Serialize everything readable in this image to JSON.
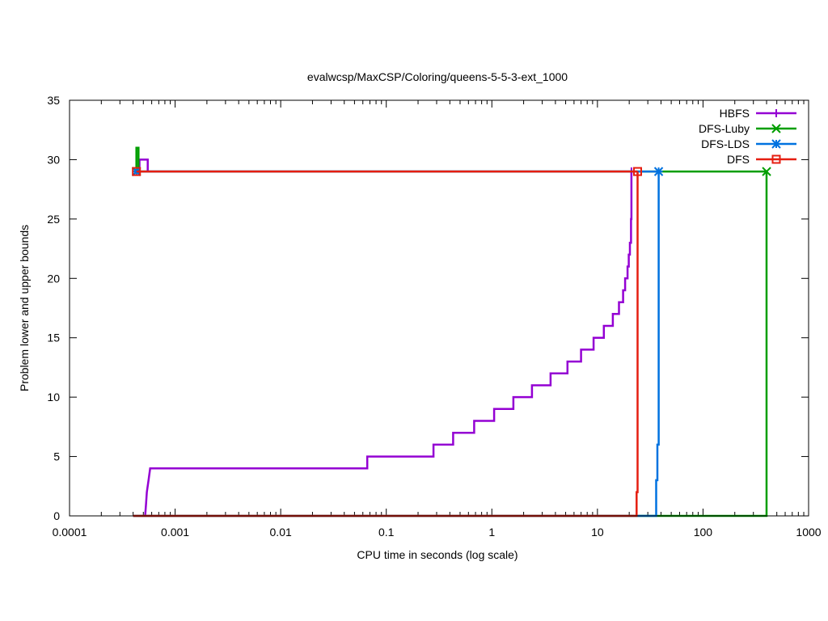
{
  "chart_data": {
    "type": "line",
    "title": "evalwcsp/MaxCSP/Coloring/queens-5-5-3-ext_1000",
    "xlabel": "CPU time in seconds (log scale)",
    "ylabel": "Problem lower and upper bounds",
    "x_scale": "log",
    "xlim": [
      0.0001,
      1000
    ],
    "ylim": [
      0,
      35
    ],
    "x_ticks": [
      {
        "value": 0.0001,
        "label": "0.0001"
      },
      {
        "value": 0.001,
        "label": "0.001"
      },
      {
        "value": 0.01,
        "label": "0.01"
      },
      {
        "value": 0.1,
        "label": "0.1"
      },
      {
        "value": 1,
        "label": "1"
      },
      {
        "value": 10,
        "label": "10"
      },
      {
        "value": 100,
        "label": "100"
      },
      {
        "value": 1000,
        "label": "1000"
      }
    ],
    "y_ticks": [
      {
        "value": 0,
        "label": "0"
      },
      {
        "value": 5,
        "label": "5"
      },
      {
        "value": 10,
        "label": "10"
      },
      {
        "value": 15,
        "label": "15"
      },
      {
        "value": 20,
        "label": "20"
      },
      {
        "value": 25,
        "label": "25"
      },
      {
        "value": 30,
        "label": "30"
      },
      {
        "value": 35,
        "label": "35"
      }
    ],
    "grid": false,
    "legend_position": "top-right",
    "series": [
      {
        "name": "HBFS",
        "color": "#9400d3",
        "marker": "plus",
        "lower": [
          [
            0.00052,
            0
          ],
          [
            0.00053,
            1
          ],
          [
            0.00054,
            2
          ],
          [
            0.00056,
            3
          ],
          [
            0.00058,
            4
          ],
          [
            0.066,
            4
          ],
          [
            0.066,
            5
          ],
          [
            0.28,
            5
          ],
          [
            0.28,
            6
          ],
          [
            0.43,
            6
          ],
          [
            0.43,
            7
          ],
          [
            0.68,
            7
          ],
          [
            0.68,
            8
          ],
          [
            1.05,
            8
          ],
          [
            1.05,
            9
          ],
          [
            1.6,
            9
          ],
          [
            1.6,
            10
          ],
          [
            2.4,
            10
          ],
          [
            2.4,
            11
          ],
          [
            3.6,
            11
          ],
          [
            3.6,
            12
          ],
          [
            5.2,
            12
          ],
          [
            5.2,
            13
          ],
          [
            7.0,
            13
          ],
          [
            7.0,
            14
          ],
          [
            9.2,
            14
          ],
          [
            9.2,
            15
          ],
          [
            11.5,
            15
          ],
          [
            11.5,
            16
          ],
          [
            14.0,
            16
          ],
          [
            14.0,
            17
          ],
          [
            16.0,
            17
          ],
          [
            16.0,
            18
          ],
          [
            17.5,
            18
          ],
          [
            17.5,
            19
          ],
          [
            18.3,
            19
          ],
          [
            18.3,
            20
          ],
          [
            19.3,
            20
          ],
          [
            19.3,
            21
          ],
          [
            19.8,
            21
          ],
          [
            19.8,
            22
          ],
          [
            20.3,
            22
          ],
          [
            20.3,
            23
          ],
          [
            20.8,
            23
          ],
          [
            20.8,
            25
          ],
          [
            21.0,
            25
          ],
          [
            21.0,
            29
          ]
        ],
        "upper": [
          [
            0.00046,
            29
          ],
          [
            0.00046,
            30
          ],
          [
            0.00055,
            30
          ],
          [
            0.00055,
            29
          ],
          [
            21.0,
            29
          ]
        ]
      },
      {
        "name": "DFS-Luby",
        "color": "#009e00",
        "marker": "x",
        "lower": [
          [
            0.0004,
            0
          ],
          [
            400,
            0
          ],
          [
            400,
            29
          ]
        ],
        "upper": [
          [
            0.00043,
            29
          ],
          [
            0.00043,
            31
          ],
          [
            0.00045,
            31
          ],
          [
            0.00045,
            29
          ],
          [
            400,
            29
          ]
        ]
      },
      {
        "name": "DFS-LDS",
        "color": "#0072e0",
        "marker": "star",
        "lower": [
          [
            0.0004,
            0
          ],
          [
            36,
            0
          ],
          [
            36,
            3
          ],
          [
            37,
            3
          ],
          [
            37,
            6
          ],
          [
            38,
            6
          ],
          [
            38,
            29
          ]
        ],
        "upper": [
          [
            0.00043,
            29
          ],
          [
            38,
            29
          ]
        ]
      },
      {
        "name": "DFS",
        "color": "#e51e10",
        "marker": "square",
        "lower": [
          [
            0.0004,
            0
          ],
          [
            23.5,
            0
          ],
          [
            23.5,
            2
          ],
          [
            24,
            2
          ],
          [
            24,
            29
          ]
        ],
        "upper": [
          [
            0.00043,
            29
          ],
          [
            24,
            29
          ]
        ]
      }
    ]
  }
}
